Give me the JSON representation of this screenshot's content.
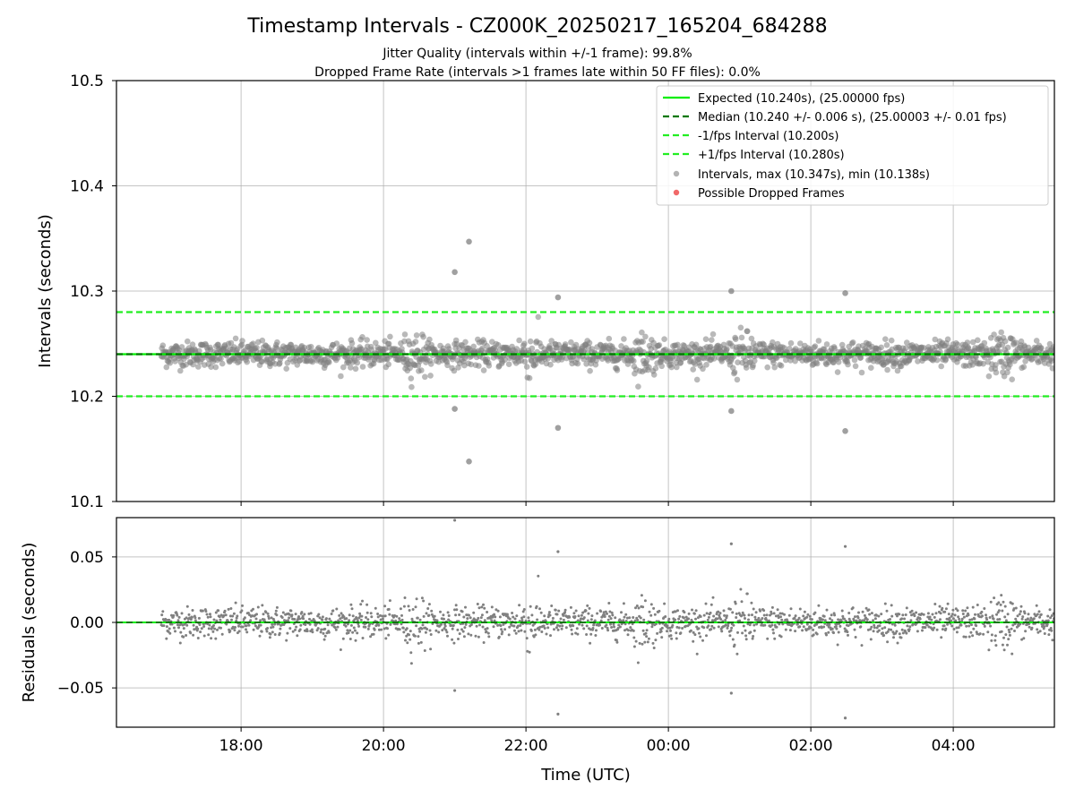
{
  "title": "Timestamp Intervals - CZ000K_20250217_165204_684288",
  "subtitle_1": "Jitter Quality (intervals within +/-1 frame): 99.8%",
  "subtitle_2": "Dropped Frame Rate (intervals >1 frames late within 50 FF files): 0.0%",
  "colors": {
    "expected": "#00ee00",
    "median": "#007700",
    "interval_bounds": "#22ee22",
    "points": "#808080",
    "dropped": "#ee4444",
    "grid": "#b0b0b0"
  },
  "chart_data": [
    {
      "type": "scatter",
      "panel": "top",
      "ylabel": "Intervals (seconds)",
      "ylim": [
        10.1,
        10.5
      ],
      "yticks": [
        "10.1",
        "10.2",
        "10.3",
        "10.4",
        "10.5"
      ],
      "xlim_hours": [
        16.25,
        29.42
      ],
      "grid": true,
      "legend_position": "upper right",
      "reference_lines": [
        {
          "name": "Expected (10.240s), (25.00000 fps)",
          "y": 10.24,
          "style": "solid",
          "color": "#00ee00"
        },
        {
          "name": "Median (10.240 +/- 0.006 s), (25.00003 +/- 0.01 fps)",
          "y": 10.24,
          "style": "dashed",
          "color": "#007700"
        },
        {
          "name": "-1/fps Interval (10.200s)",
          "y": 10.2,
          "style": "dashed",
          "color": "#22ee22"
        },
        {
          "name": "+1/fps Interval (10.280s)",
          "y": 10.28,
          "style": "dashed",
          "color": "#22ee22"
        }
      ],
      "series": [
        {
          "name": "Intervals, max (10.347s), min (10.138s)",
          "marker": "circle",
          "color": "#808080",
          "max": 10.347,
          "min": 10.138,
          "center": 10.24,
          "spread_sd": 0.006
        },
        {
          "name": "Possible Dropped Frames",
          "marker": "circle",
          "color": "#ee4444",
          "count": 0
        }
      ],
      "outliers": [
        {
          "t": "21:00",
          "y": 10.318
        },
        {
          "t": "21:12",
          "y": 10.347
        },
        {
          "t": "21:00",
          "y": 10.188
        },
        {
          "t": "21:12",
          "y": 10.138
        },
        {
          "t": "22:27",
          "y": 10.294
        },
        {
          "t": "22:27",
          "y": 10.17
        },
        {
          "t": "00:53",
          "y": 10.3
        },
        {
          "t": "00:53",
          "y": 10.186
        },
        {
          "t": "02:29",
          "y": 10.298
        },
        {
          "t": "02:29",
          "y": 10.167
        }
      ]
    },
    {
      "type": "scatter",
      "panel": "bottom",
      "ylabel": "Residuals (seconds)",
      "xlabel": "Time (UTC)",
      "ylim": [
        -0.08,
        0.08
      ],
      "yticks": [
        "−0.05",
        "0.00",
        "0.05"
      ],
      "xticks": [
        "18:00",
        "20:00",
        "22:00",
        "00:00",
        "02:00",
        "04:00"
      ],
      "xlim_hours": [
        16.25,
        29.42
      ],
      "grid": true,
      "reference_lines": [
        {
          "y": 0.0,
          "style": "solid",
          "color": "#00ee00"
        },
        {
          "y": 0.0,
          "style": "dashed",
          "color": "#007700"
        }
      ],
      "series": [
        {
          "name": "residuals",
          "color": "#808080",
          "max": 0.08,
          "min": -0.072,
          "spread_sd": 0.006
        }
      ]
    }
  ]
}
